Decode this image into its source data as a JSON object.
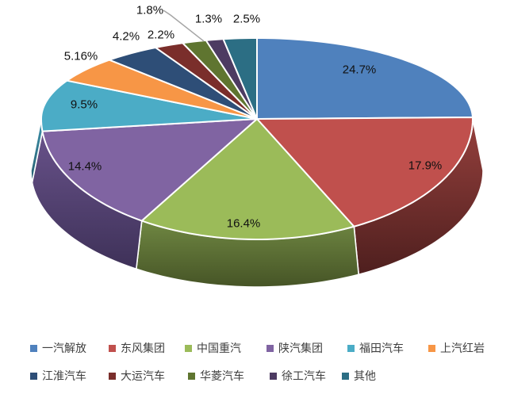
{
  "chart_data": {
    "type": "pie",
    "style": "3d",
    "title": "",
    "legend_position": "bottom",
    "label_format": "percent",
    "slices": [
      {
        "name": "一汽解放",
        "value": 24.7,
        "label": "24.7%",
        "color": "#4F81BD"
      },
      {
        "name": "东风集团",
        "value": 17.9,
        "label": "17.9%",
        "color": "#C0504D",
        "side_top": "#96403D",
        "side_bottom": "#4E1F1E"
      },
      {
        "name": "中国重汽",
        "value": 16.4,
        "label": "16.4%",
        "color": "#9BBB59",
        "side_top": "#6F8742",
        "side_bottom": "#465426"
      },
      {
        "name": "陕汽集团",
        "value": 14.4,
        "label": "14.4%",
        "color": "#8064A2",
        "side_top": "#68528A",
        "side_bottom": "#3E3158"
      },
      {
        "name": "福田汽车",
        "value": 9.5,
        "label": "9.5%",
        "color": "#4BACC6",
        "side_top": "#3F93AD",
        "side_bottom": "#265E6F"
      },
      {
        "name": "上汽红岩",
        "value": 5.16,
        "label": "5.16%",
        "color": "#F79646"
      },
      {
        "name": "江淮汽车",
        "value": 4.2,
        "label": "4.2%",
        "color": "#2E4E77"
      },
      {
        "name": "大运汽车",
        "value": 2.2,
        "label": "2.2%",
        "color": "#7A2E2B"
      },
      {
        "name": "华菱汽车",
        "value": 1.8,
        "label": "1.8%",
        "color": "#5F7530"
      },
      {
        "name": "徐工汽车",
        "value": 1.3,
        "label": "1.3%",
        "color": "#4D3B62"
      },
      {
        "name": "其他",
        "value": 2.5,
        "label": "2.5%",
        "color": "#2C6E84"
      }
    ],
    "separator_color": "#FFFFFF",
    "leader_line_color": "#A6A6A6",
    "label_text_color": "#111111",
    "legend_text_color": "#404040"
  }
}
